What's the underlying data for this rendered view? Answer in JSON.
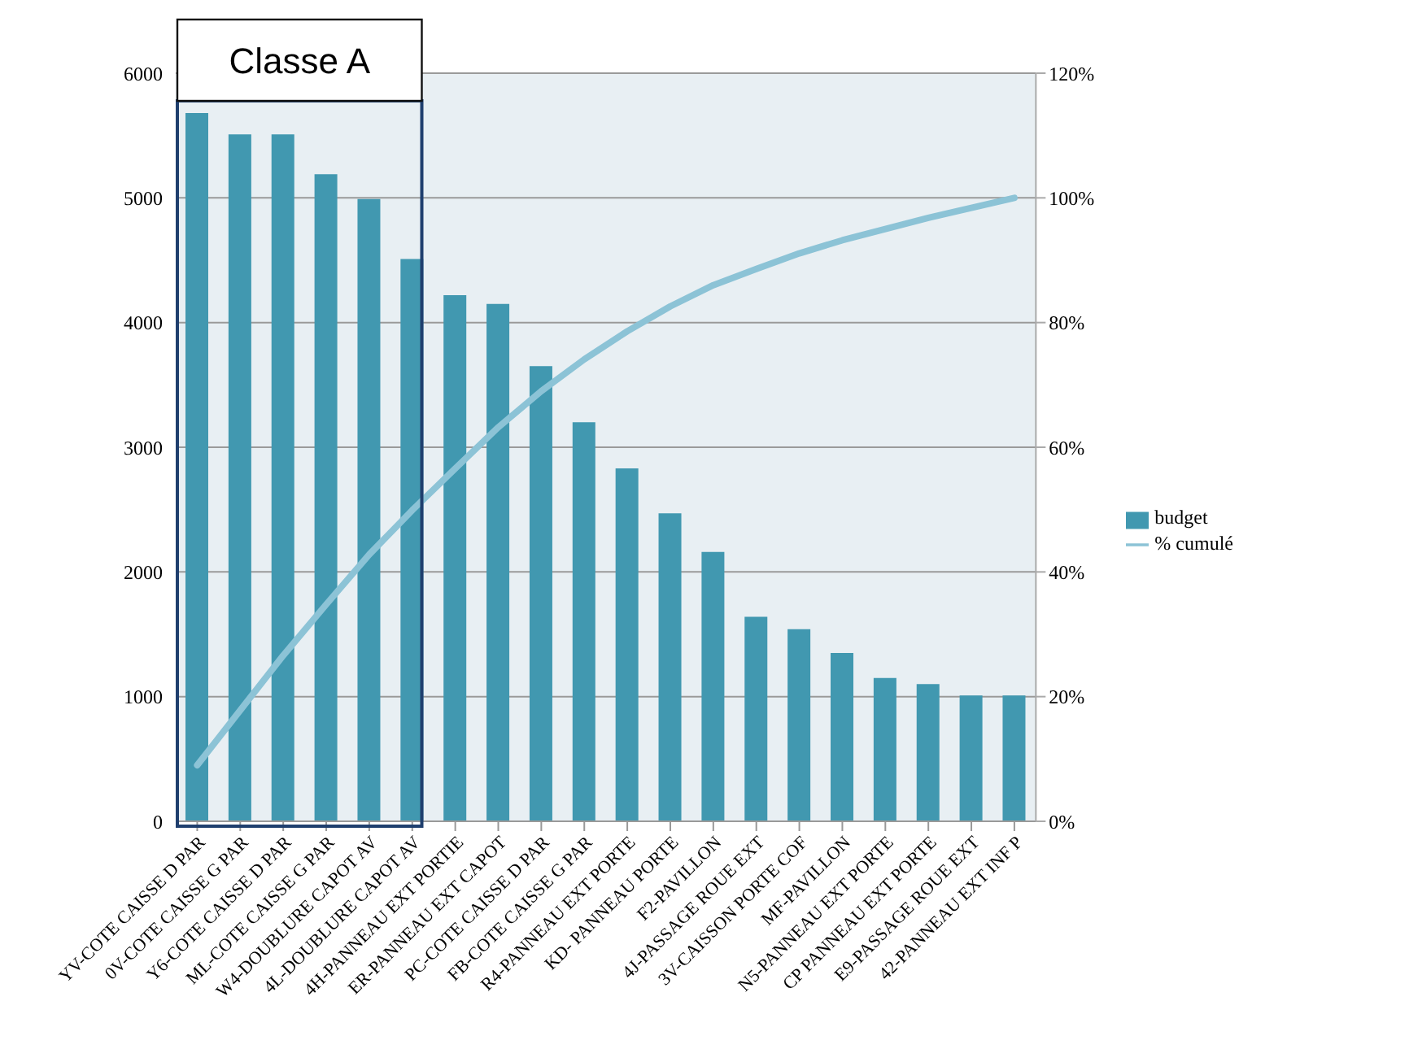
{
  "chart_data": {
    "type": "bar",
    "categories": [
      "YV-COTE CAISSE D PAR",
      "0V-COTE CAISSE G PAR",
      "Y6-COTE CAISSE D PAR",
      "ML-COTE CAISSE G PAR",
      "W4-DOUBLURE CAPOT AV",
      "4L-DOUBLURE CAPOT AV",
      "4H-PANNEAU EXT PORTIE",
      "ER-PANNEAU EXT CAPOT",
      "PC-COTE CAISSE D PAR",
      "FB-COTE CAISSE G PAR",
      "R4-PANNEAU EXT PORTE",
      "KD- PANNEAU PORTE",
      "F2-PAVILLON",
      "4J-PASSAGE ROUE EXT",
      "3V-CAISSON PORTE COF",
      "MF-PAVILLON",
      "N5-PANNEAU EXT PORTE",
      "CP PANNEAU EXT PORTE",
      "E9-PASSAGE ROUE EXT",
      "42-PANNEAU EXT INF P"
    ],
    "series": [
      {
        "name": "budget",
        "color": "#4198b0",
        "values": [
          5680,
          5510,
          5510,
          5190,
          4990,
          4510,
          4220,
          4150,
          3650,
          3200,
          2830,
          2470,
          2160,
          1640,
          1540,
          1350,
          1150,
          1100,
          1010,
          1010
        ]
      },
      {
        "name": "% cumulé",
        "type": "line",
        "axis": "y2",
        "color": "#8cc3d6",
        "values": [
          9.0,
          17.8,
          26.6,
          34.8,
          42.8,
          49.9,
          56.6,
          63.2,
          69.0,
          74.1,
          78.6,
          82.6,
          86.0,
          88.6,
          91.1,
          93.2,
          95.0,
          96.8,
          98.4,
          100
        ]
      }
    ],
    "ylim": [
      0,
      6000
    ],
    "yticks": [
      0,
      1000,
      2000,
      3000,
      4000,
      5000,
      6000
    ],
    "y2lim": [
      0,
      120
    ],
    "y2ticks": [
      {
        "value": 0,
        "label": "0%"
      },
      {
        "value": 20,
        "label": "20%"
      },
      {
        "value": 40,
        "label": "40%"
      },
      {
        "value": 60,
        "label": "60%"
      },
      {
        "value": 80,
        "label": "80%"
      },
      {
        "value": 100,
        "label": "100%"
      },
      {
        "value": 120,
        "label": "120%"
      }
    ],
    "annotations": [
      "Classe A"
    ],
    "grid": "y",
    "legend": "right",
    "marker": "none",
    "line_style": "solid"
  }
}
